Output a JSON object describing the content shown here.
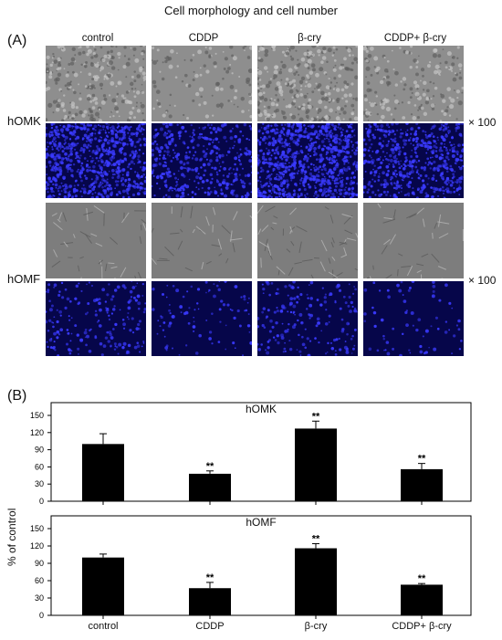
{
  "figure": {
    "title": "Cell morphology and cell number",
    "panel_a_label": "(A)",
    "panel_b_label": "(B)",
    "columns": [
      "control",
      "CDDP",
      "β-cry",
      "CDDP+ β-cry"
    ],
    "rows": [
      {
        "label": "hOMK",
        "magnification": "× 100"
      },
      {
        "label": "hOMF",
        "magnification": "× 100"
      }
    ],
    "colors": {
      "bright_field": "#8b8b8b",
      "fluorescence": "#06064a",
      "nuclei": "#3a3aff",
      "bar": "#000000"
    }
  },
  "chart_data": [
    {
      "type": "bar",
      "title": "hOMK",
      "ylabel": "% of control",
      "categories": [
        "control",
        "CDDP",
        "β-cry",
        "CDDP+ β-cry"
      ],
      "values": [
        100,
        48,
        127,
        56
      ],
      "errors": [
        18,
        5,
        13,
        10
      ],
      "significance": [
        "",
        "**",
        "**",
        "**"
      ],
      "ylim": [
        0,
        150
      ],
      "yticks": [
        0,
        30,
        60,
        90,
        120,
        150
      ]
    },
    {
      "type": "bar",
      "title": "hOMF",
      "ylabel": "% of control",
      "categories": [
        "control",
        "CDDP",
        "β-cry",
        "CDDP+ β-cry"
      ],
      "values": [
        100,
        47,
        116,
        53
      ],
      "errors": [
        6,
        10,
        8,
        2
      ],
      "significance": [
        "",
        "**",
        "**",
        "**"
      ],
      "ylim": [
        0,
        150
      ],
      "yticks": [
        0,
        30,
        60,
        90,
        120,
        150
      ]
    }
  ]
}
